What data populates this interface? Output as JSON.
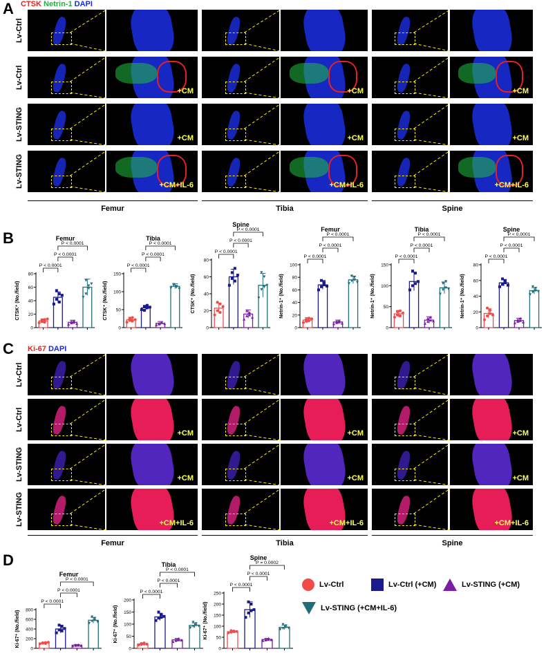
{
  "panels": {
    "a": "A",
    "b": "B",
    "c": "C",
    "d": "D"
  },
  "stain_a": {
    "ctsk": "CTSK",
    "netrin": "Netrin-1",
    "dapi": "DAPI"
  },
  "stain_c": {
    "ki67": "Ki-67",
    "dapi": "DAPI"
  },
  "row_labels": [
    "Lv-Ctrl",
    "Lv-Ctrl",
    "Lv-STING",
    "Lv-STING"
  ],
  "treatments": [
    "",
    "+CM",
    "+CM",
    "+CM+IL-6"
  ],
  "tissues": [
    "Femur",
    "Tibia",
    "Spine"
  ],
  "colors": {
    "lvctrl": "#f04a4a",
    "lvctrl_cm": "#1a1a8c",
    "lvsting_cm": "#7a1fa2",
    "lvsting_cm_il6": "#1f6e7a",
    "dapi_blue": "#1a2bd6",
    "netrin_green": "#20c040",
    "ctsk_red": "#e82020",
    "ki67_red": "#ff2030"
  },
  "legend": {
    "lvctrl": "Lv-Ctrl",
    "lvctrl_cm": "Lv-Ctrl (+CM)",
    "lvsting_cm": "Lv-STING (+CM)",
    "lvsting_cm_il6": "Lv-STING (+CM+IL-6)"
  },
  "chart_data": [
    {
      "id": "b1",
      "type": "bar",
      "title": "Femur",
      "ylabel": "CTSK⁺ (No./field)",
      "ylim": [
        0,
        80
      ],
      "ticks": [
        0,
        20,
        40,
        60,
        80
      ],
      "values": [
        10,
        45,
        8,
        60
      ],
      "errors": [
        3,
        8,
        3,
        12
      ],
      "points": [
        [
          7,
          9,
          12,
          11,
          8,
          13
        ],
        [
          35,
          42,
          50,
          55,
          38,
          48
        ],
        [
          5,
          7,
          10,
          9,
          8,
          6
        ],
        [
          45,
          50,
          62,
          70,
          58,
          65
        ]
      ],
      "pvals": [
        {
          "a": 0,
          "b": 1,
          "t": "P < 0.0001"
        },
        {
          "a": 1,
          "b": 2,
          "t": "P < 0.0001"
        },
        {
          "a": 1,
          "b": 3,
          "t": "P < 0.0001"
        }
      ]
    },
    {
      "id": "b2",
      "type": "bar",
      "title": "Tibia",
      "ylabel": "CTSK⁺ (No./field)",
      "ylim": [
        0,
        150
      ],
      "ticks": [
        0,
        50,
        100,
        150
      ],
      "values": [
        22,
        55,
        12,
        115
      ],
      "errors": [
        7,
        7,
        5,
        7
      ],
      "points": [
        [
          15,
          20,
          28,
          25,
          18,
          22
        ],
        [
          50,
          58,
          62,
          48,
          55,
          57
        ],
        [
          8,
          12,
          15,
          10,
          14,
          11
        ],
        [
          110,
          120,
          112,
          118,
          115,
          108
        ]
      ],
      "pvals": [
        {
          "a": 0,
          "b": 1,
          "t": "P < 0.0001"
        },
        {
          "a": 1,
          "b": 2,
          "t": "P < 0.0001"
        },
        {
          "a": 1,
          "b": 3,
          "t": "P < 0.0001"
        }
      ]
    },
    {
      "id": "b3",
      "type": "bar",
      "title": "Spine",
      "ylabel": "CTSK⁺ (No./field)",
      "ylim": [
        0,
        80
      ],
      "ticks": [
        0,
        20,
        40,
        60,
        80
      ],
      "values": [
        23,
        60,
        16,
        50
      ],
      "errors": [
        6,
        9,
        5,
        14
      ],
      "points": [
        [
          15,
          20,
          28,
          30,
          18,
          25
        ],
        [
          50,
          58,
          70,
          65,
          55,
          62
        ],
        [
          10,
          14,
          18,
          20,
          15,
          12
        ],
        [
          35,
          45,
          60,
          65,
          48,
          50
        ]
      ],
      "pvals": [
        {
          "a": 0,
          "b": 1,
          "t": "P < 0.0001"
        },
        {
          "a": 1,
          "b": 2,
          "t": "P < 0.0001"
        },
        {
          "a": 1,
          "b": 3,
          "t": "P < 0.0001"
        }
      ]
    },
    {
      "id": "b4",
      "type": "bar",
      "title": "Femur",
      "ylabel": "Netrin-1⁺ (No./field)",
      "ylim": [
        0,
        100
      ],
      "ticks": [
        0,
        20,
        40,
        60,
        80,
        100
      ],
      "values": [
        12,
        68,
        9,
        76
      ],
      "errors": [
        4,
        7,
        3,
        6
      ],
      "points": [
        [
          8,
          10,
          15,
          13,
          11,
          14
        ],
        [
          60,
          65,
          72,
          75,
          68,
          66
        ],
        [
          6,
          8,
          11,
          10,
          9,
          7
        ],
        [
          70,
          74,
          80,
          82,
          76,
          72
        ]
      ],
      "pvals": [
        {
          "a": 0,
          "b": 1,
          "t": "P < 0.0001"
        },
        {
          "a": 1,
          "b": 2,
          "t": "P < 0.0001"
        },
        {
          "a": 1,
          "b": 3,
          "t": "P < 0.0001"
        }
      ]
    },
    {
      "id": "b5",
      "type": "bar",
      "title": "Tibia",
      "ylabel": "Netrin-1⁺ (No./field)",
      "ylim": [
        0,
        150
      ],
      "ticks": [
        0,
        50,
        100,
        150
      ],
      "values": [
        33,
        110,
        18,
        95
      ],
      "errors": [
        8,
        22,
        8,
        14
      ],
      "points": [
        [
          25,
          30,
          40,
          38,
          28,
          35
        ],
        [
          90,
          100,
          130,
          135,
          105,
          110
        ],
        [
          10,
          15,
          25,
          22,
          18,
          16
        ],
        [
          80,
          90,
          110,
          105,
          95,
          92
        ]
      ],
      "pvals": [
        {
          "a": 0,
          "b": 1,
          "t": "P < 0.0001"
        },
        {
          "a": 1,
          "b": 2,
          "t": "P < 0.0001"
        },
        {
          "a": 1,
          "b": 3,
          "t": "P < 0.0001"
        }
      ]
    },
    {
      "id": "b6",
      "type": "bar",
      "title": "Spine",
      "ylabel": "Netrin-1⁺ (No./field)",
      "ylim": [
        0,
        80
      ],
      "ticks": [
        0,
        20,
        40,
        60,
        80
      ],
      "values": [
        18,
        57,
        9,
        47
      ],
      "errors": [
        6,
        4,
        3,
        4
      ],
      "points": [
        [
          10,
          15,
          22,
          25,
          18,
          16
        ],
        [
          52,
          55,
          60,
          62,
          57,
          54
        ],
        [
          6,
          8,
          12,
          10,
          9,
          7
        ],
        [
          42,
          45,
          50,
          52,
          47,
          46
        ]
      ],
      "pvals": [
        {
          "a": 0,
          "b": 1,
          "t": "P < 0.0001"
        },
        {
          "a": 1,
          "b": 2,
          "t": "P < 0.0001"
        },
        {
          "a": 1,
          "b": 3,
          "t": "P < 0.0001"
        }
      ]
    },
    {
      "id": "d1",
      "type": "bar",
      "title": "Femur",
      "ylabel": "Ki-67⁺ (No./field)",
      "ylim": [
        0,
        800
      ],
      "ticks": [
        0,
        200,
        400,
        600,
        800
      ],
      "values": [
        110,
        400,
        65,
        580
      ],
      "errors": [
        15,
        80,
        15,
        60
      ],
      "points": [
        [
          95,
          105,
          120,
          115,
          100,
          125
        ],
        [
          320,
          380,
          450,
          480,
          360,
          410
        ],
        [
          50,
          60,
          75,
          70,
          65,
          58
        ],
        [
          520,
          560,
          620,
          650,
          580,
          550
        ]
      ],
      "pvals": [
        {
          "a": 0,
          "b": 1,
          "t": "P < 0.0001"
        },
        {
          "a": 1,
          "b": 2,
          "t": "P < 0.0001"
        },
        {
          "a": 1,
          "b": 3,
          "t": "P < 0.0001"
        }
      ]
    },
    {
      "id": "d2",
      "type": "bar",
      "title": "Tibia",
      "ylabel": "Ki-67⁺ (No./field)",
      "ylim": [
        0,
        200
      ],
      "ticks": [
        0,
        50,
        100,
        150,
        200
      ],
      "values": [
        18,
        130,
        35,
        95
      ],
      "errors": [
        4,
        15,
        6,
        10
      ],
      "points": [
        [
          14,
          16,
          22,
          20,
          18,
          17
        ],
        [
          115,
          125,
          140,
          150,
          128,
          132
        ],
        [
          28,
          32,
          40,
          38,
          35,
          34
        ],
        [
          85,
          90,
          102,
          108,
          95,
          92
        ]
      ],
      "pvals": [
        {
          "a": 0,
          "b": 1,
          "t": "P < 0.0001"
        },
        {
          "a": 1,
          "b": 2,
          "t": "P < 0.0001"
        },
        {
          "a": 1,
          "b": 3,
          "t": "P < 0.0001"
        }
      ]
    },
    {
      "id": "d3",
      "type": "bar",
      "title": "Spine",
      "ylabel": "Ki-67⁺ (No./field)",
      "ylim": [
        0,
        250
      ],
      "ticks": [
        0,
        50,
        100,
        150,
        200,
        250
      ],
      "values": [
        75,
        175,
        40,
        95
      ],
      "errors": [
        5,
        35,
        5,
        10
      ],
      "points": [
        [
          70,
          73,
          78,
          80,
          75,
          76
        ],
        [
          140,
          160,
          200,
          210,
          170,
          175
        ],
        [
          35,
          38,
          45,
          42,
          40,
          39
        ],
        [
          85,
          90,
          102,
          108,
          95,
          92
        ]
      ],
      "pvals": [
        {
          "a": 0,
          "b": 1,
          "t": "P < 0.0001"
        },
        {
          "a": 1,
          "b": 2,
          "t": "P < 0.0001"
        },
        {
          "a": 1,
          "b": 3,
          "t": "P = 0.0002"
        }
      ]
    }
  ]
}
